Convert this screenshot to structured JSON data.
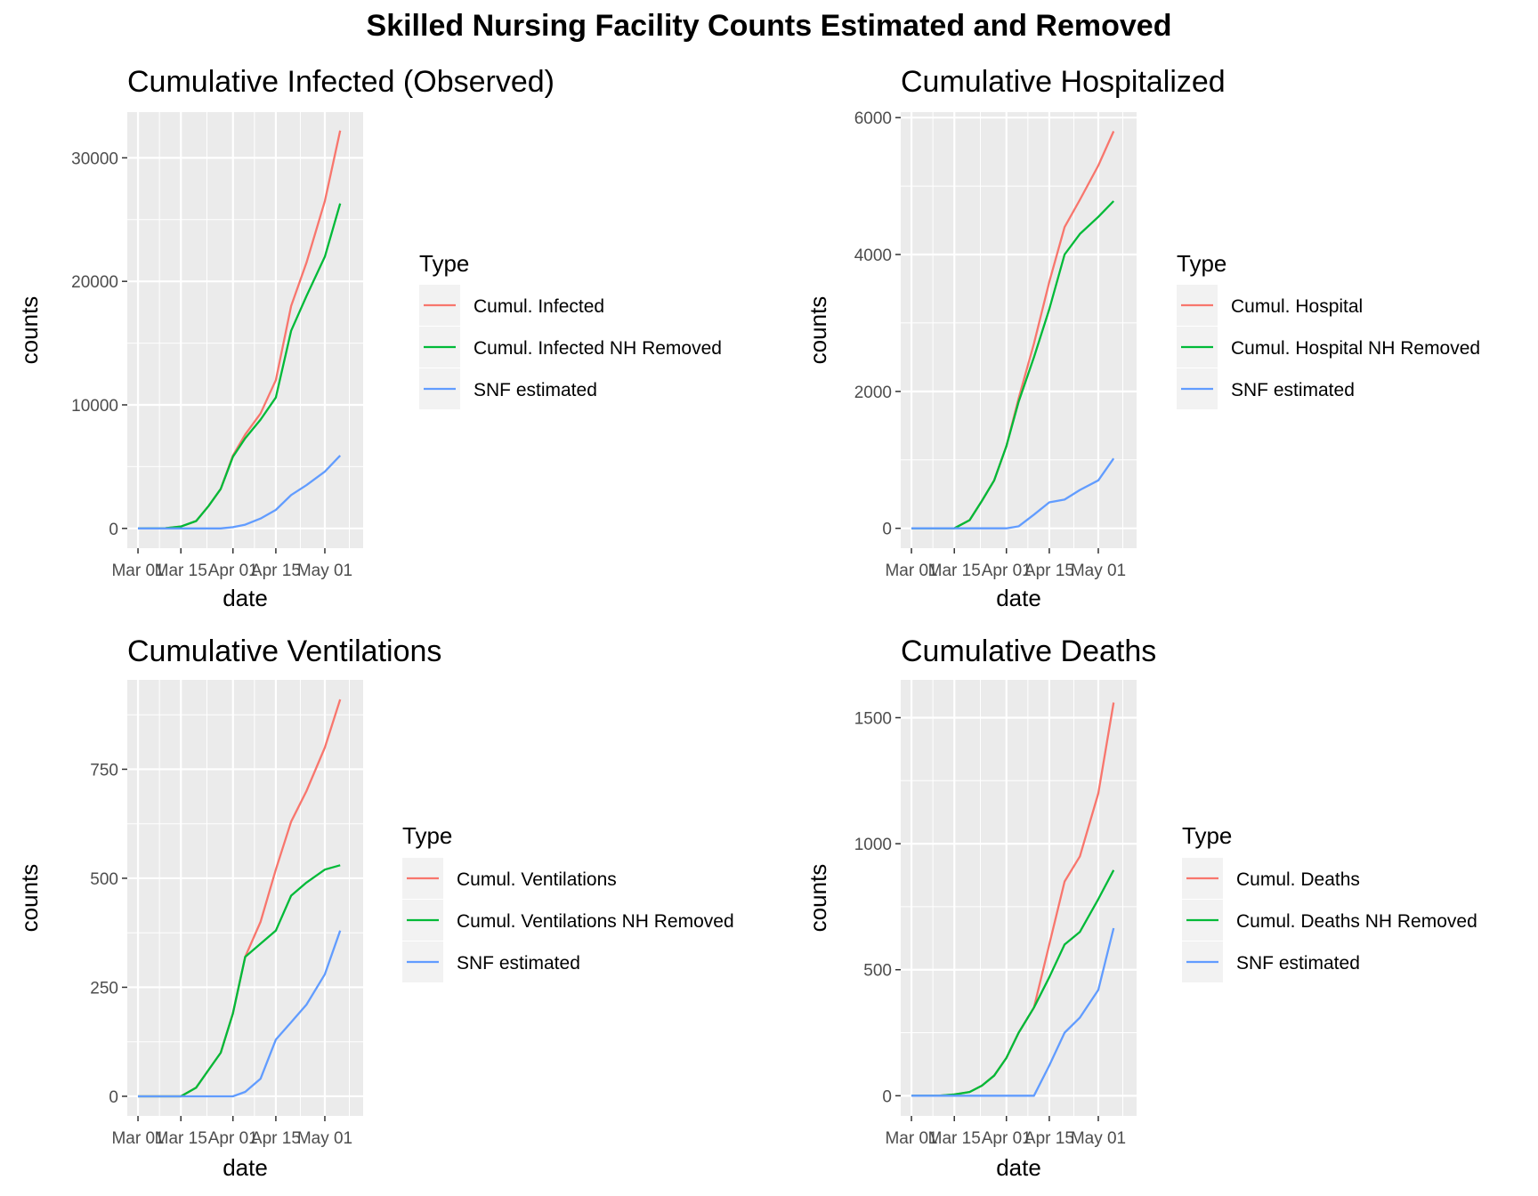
{
  "page_title": "Skilled Nursing Facility Counts Estimated and Removed",
  "colors": {
    "red": "#F8766D",
    "green": "#00BA38",
    "blue": "#619CFF",
    "panel": "#EBEBEB",
    "grid": "#FFFFFF"
  },
  "chart_data": [
    {
      "type": "line",
      "title": "Cumulative Infected (Observed)",
      "xlabel": "date",
      "ylabel": "counts",
      "x_ticks": [
        "Mar 01",
        "Mar 15",
        "Apr 01",
        "Apr 15",
        "May 01"
      ],
      "y_ticks": [
        0,
        10000,
        20000,
        30000
      ],
      "y_tick_labels": [
        "0",
        "10000",
        "20000",
        "30000"
      ],
      "ylim": [
        -1600,
        33700
      ],
      "legend_title": "Type",
      "x": [
        "Mar 01",
        "Mar 10",
        "Mar 15",
        "Mar 20",
        "Mar 24",
        "Mar 28",
        "Apr 01",
        "Apr 05",
        "Apr 10",
        "Apr 15",
        "Apr 20",
        "Apr 25",
        "May 01",
        "May 06"
      ],
      "series": [
        {
          "name": "Cumul. Infected",
          "color": "#F8766D",
          "values": [
            0,
            20,
            150,
            600,
            1800,
            3200,
            5900,
            7600,
            9300,
            12000,
            18000,
            21500,
            26500,
            32200
          ]
        },
        {
          "name": "Cumul. Infected NH Removed",
          "color": "#00BA38",
          "values": [
            0,
            20,
            150,
            600,
            1800,
            3200,
            5800,
            7300,
            8800,
            10600,
            16000,
            18800,
            22000,
            26300
          ]
        },
        {
          "name": "SNF estimated",
          "color": "#619CFF",
          "values": [
            0,
            0,
            0,
            0,
            0,
            0,
            100,
            300,
            800,
            1500,
            2700,
            3500,
            4600,
            5900
          ]
        }
      ]
    },
    {
      "type": "line",
      "title": "Cumulative Hospitalized",
      "xlabel": "date",
      "ylabel": "counts",
      "x_ticks": [
        "Mar 01",
        "Mar 15",
        "Apr 01",
        "Apr 15",
        "May 01"
      ],
      "y_ticks": [
        0,
        2000,
        4000,
        6000
      ],
      "y_tick_labels": [
        "0",
        "2000",
        "4000",
        "6000"
      ],
      "ylim": [
        -290,
        6080
      ],
      "legend_title": "Type",
      "x": [
        "Mar 01",
        "Mar 10",
        "Mar 15",
        "Mar 20",
        "Mar 24",
        "Mar 28",
        "Apr 01",
        "Apr 05",
        "Apr 10",
        "Apr 15",
        "Apr 20",
        "Apr 25",
        "May 01",
        "May 06"
      ],
      "series": [
        {
          "name": "Cumul. Hospital",
          "color": "#F8766D",
          "values": [
            0,
            0,
            0,
            120,
            400,
            700,
            1200,
            1900,
            2700,
            3600,
            4400,
            4800,
            5300,
            5800
          ]
        },
        {
          "name": "Cumul. Hospital NH Removed",
          "color": "#00BA38",
          "values": [
            0,
            0,
            0,
            120,
            400,
            700,
            1200,
            1850,
            2500,
            3200,
            4000,
            4300,
            4550,
            4780
          ]
        },
        {
          "name": "SNF estimated",
          "color": "#619CFF",
          "values": [
            0,
            0,
            0,
            0,
            0,
            0,
            0,
            30,
            200,
            380,
            420,
            560,
            700,
            1020
          ]
        }
      ]
    },
    {
      "type": "line",
      "title": "Cumulative Ventilations",
      "xlabel": "date",
      "ylabel": "counts",
      "x_ticks": [
        "Mar 01",
        "Mar 15",
        "Apr 01",
        "Apr 15",
        "May 01"
      ],
      "y_ticks": [
        0,
        250,
        500,
        750
      ],
      "y_tick_labels": [
        "0",
        "250",
        "500",
        "750"
      ],
      "ylim": [
        -45,
        955
      ],
      "legend_title": "Type",
      "x": [
        "Mar 01",
        "Mar 10",
        "Mar 15",
        "Mar 20",
        "Mar 24",
        "Mar 28",
        "Apr 01",
        "Apr 05",
        "Apr 10",
        "Apr 15",
        "Apr 20",
        "Apr 25",
        "May 01",
        "May 06"
      ],
      "series": [
        {
          "name": "Cumul. Ventilations",
          "color": "#F8766D",
          "values": [
            0,
            0,
            0,
            20,
            60,
            100,
            190,
            320,
            400,
            520,
            630,
            700,
            800,
            910
          ]
        },
        {
          "name": "Cumul. Ventilations NH Removed",
          "color": "#00BA38",
          "values": [
            0,
            0,
            0,
            20,
            60,
            100,
            190,
            320,
            350,
            380,
            460,
            490,
            520,
            530
          ]
        },
        {
          "name": "SNF estimated",
          "color": "#619CFF",
          "values": [
            0,
            0,
            0,
            0,
            0,
            0,
            0,
            10,
            40,
            130,
            170,
            210,
            280,
            380
          ]
        }
      ]
    },
    {
      "type": "line",
      "title": "Cumulative Deaths",
      "xlabel": "date",
      "ylabel": "counts",
      "x_ticks": [
        "Mar 01",
        "Mar 15",
        "Apr 01",
        "Apr 15",
        "May 01"
      ],
      "y_ticks": [
        0,
        500,
        1000,
        1500
      ],
      "y_tick_labels": [
        "0",
        "500",
        "1000",
        "1500"
      ],
      "ylim": [
        -80,
        1650
      ],
      "legend_title": "Type",
      "x": [
        "Mar 01",
        "Mar 10",
        "Mar 15",
        "Mar 20",
        "Mar 24",
        "Mar 28",
        "Apr 01",
        "Apr 05",
        "Apr 10",
        "Apr 15",
        "Apr 20",
        "Apr 25",
        "May 01",
        "May 06"
      ],
      "series": [
        {
          "name": "Cumul. Deaths",
          "color": "#F8766D",
          "values": [
            0,
            0,
            5,
            15,
            40,
            80,
            150,
            250,
            350,
            600,
            850,
            950,
            1200,
            1560
          ]
        },
        {
          "name": "Cumul. Deaths NH Removed",
          "color": "#00BA38",
          "values": [
            0,
            0,
            5,
            15,
            40,
            80,
            150,
            250,
            350,
            470,
            600,
            650,
            780,
            895
          ]
        },
        {
          "name": "SNF estimated",
          "color": "#619CFF",
          "values": [
            0,
            0,
            0,
            0,
            0,
            0,
            0,
            0,
            0,
            120,
            250,
            310,
            420,
            665
          ]
        }
      ]
    }
  ]
}
